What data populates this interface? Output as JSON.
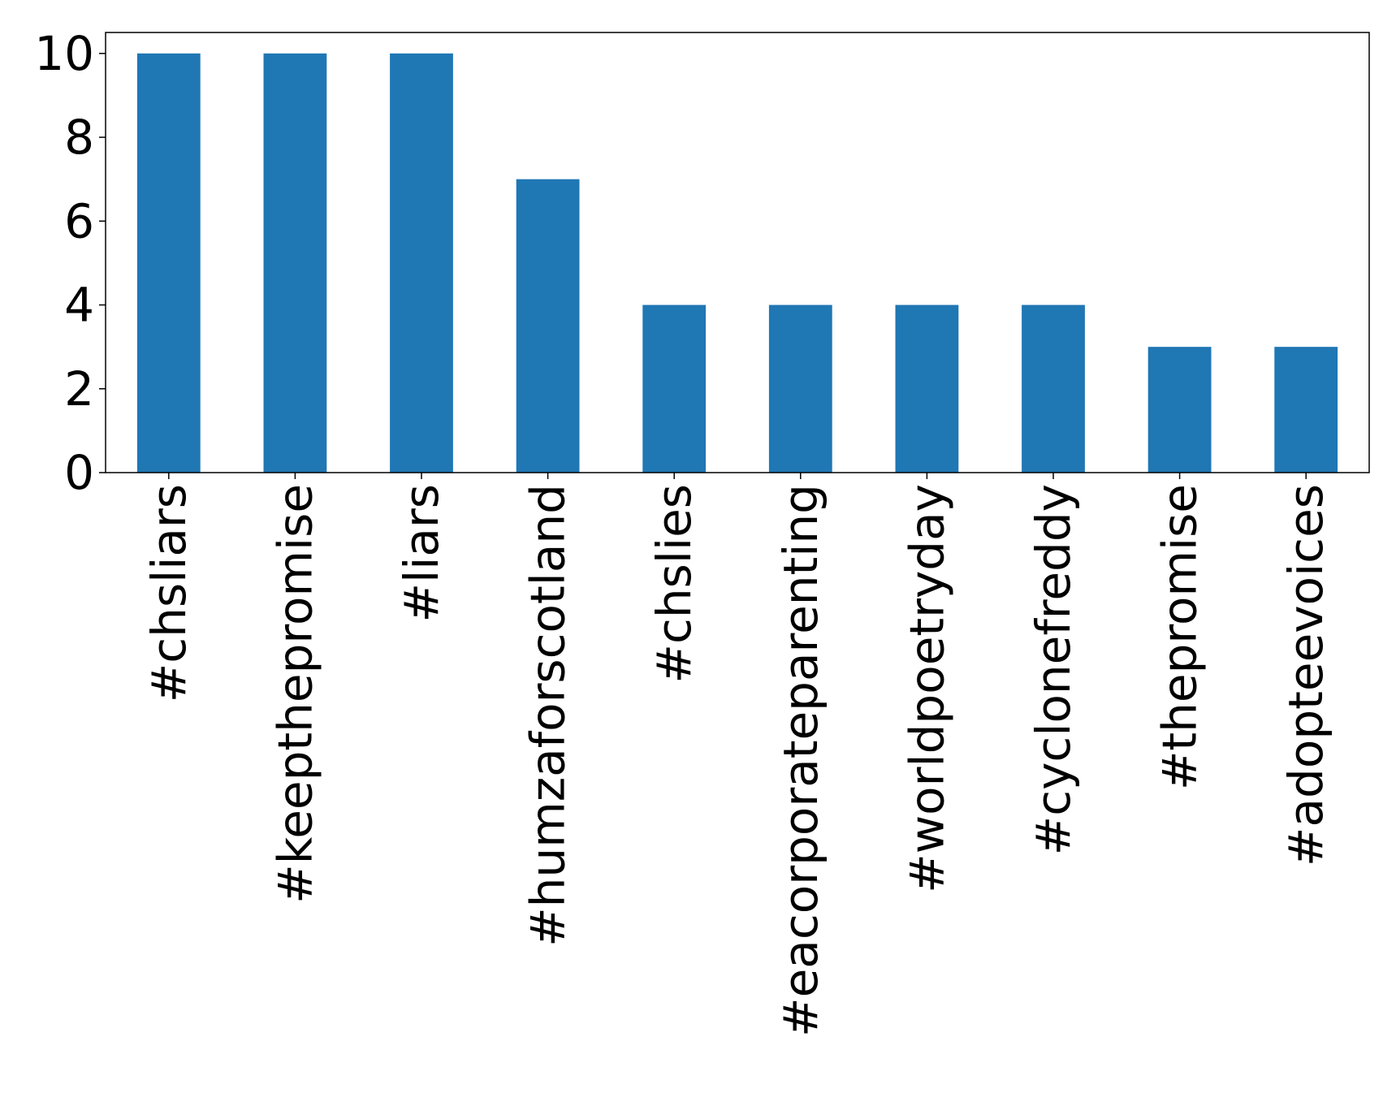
{
  "chart_data": {
    "type": "bar",
    "categories": [
      "#chsliars",
      "#keepthepromise",
      "#liars",
      "#humzaforscotland",
      "#chslies",
      "#eacorporateparenting",
      "#worldpoetryday",
      "#cyclonefreddy",
      "#thepromise",
      "#adopteevoices"
    ],
    "values": [
      10,
      10,
      10,
      7,
      4,
      4,
      4,
      4,
      3,
      3
    ],
    "title": "",
    "xlabel": "",
    "ylabel": "",
    "ylim": [
      0,
      10.5
    ],
    "yticks": [
      "0",
      "2",
      "4",
      "6",
      "8",
      "10"
    ],
    "grid": false,
    "legend": "none",
    "bar_color": "#1f77b4"
  }
}
